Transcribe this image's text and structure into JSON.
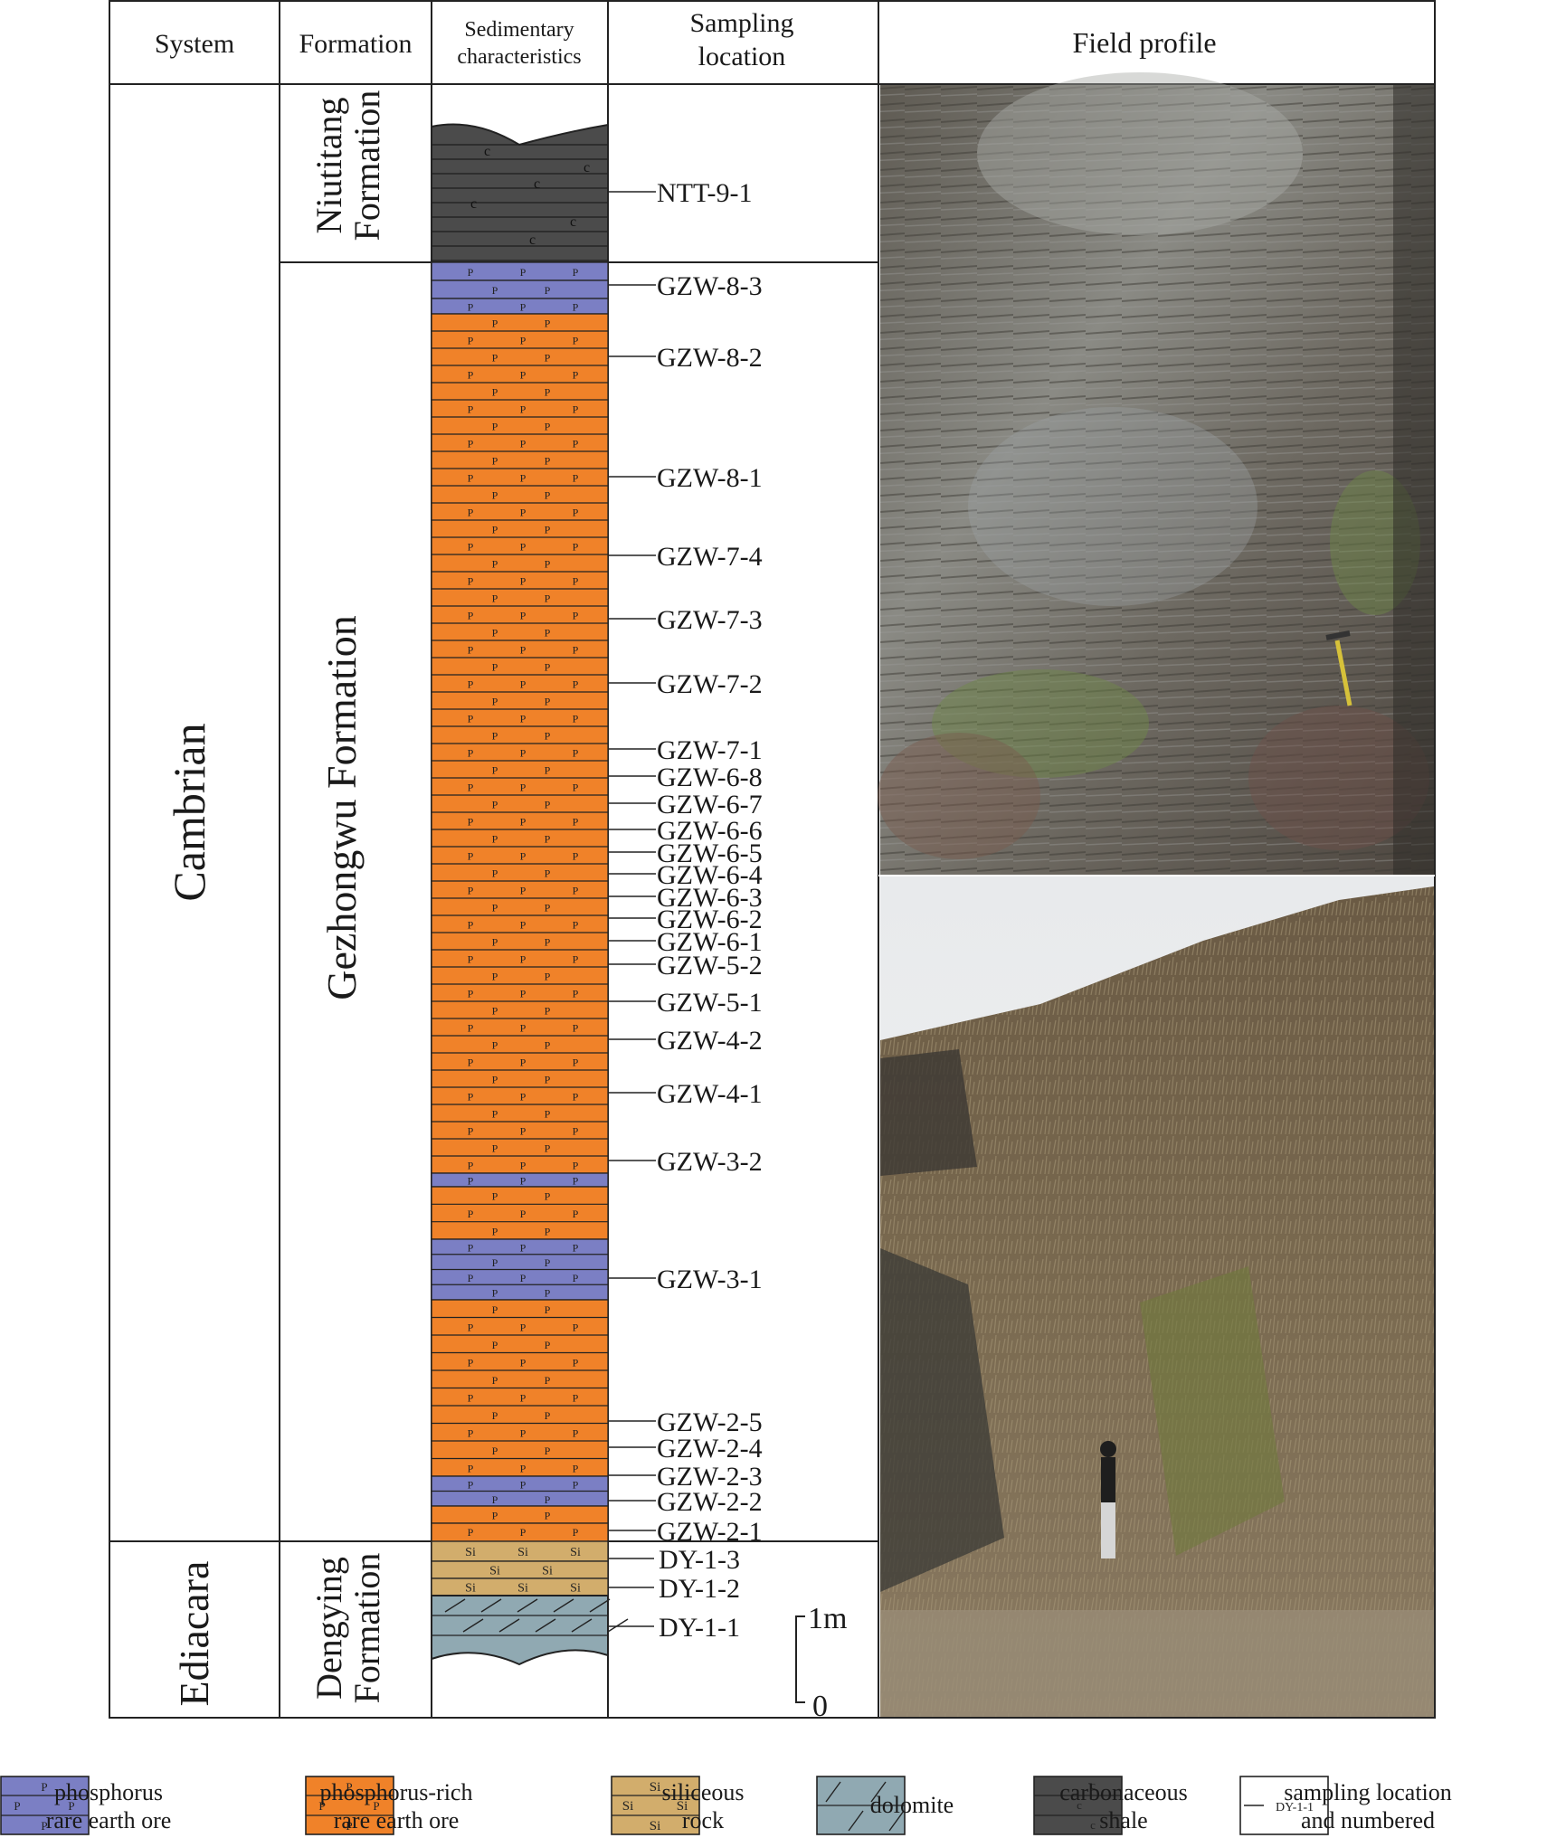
{
  "headers": {
    "system": "System",
    "formation": "Formation",
    "sedimentary": [
      "Sedimentary",
      "characteristics"
    ],
    "sampling": [
      "Sampling",
      "location"
    ],
    "field": "Field profile"
  },
  "systems": [
    {
      "label": "Cambrian"
    },
    {
      "label": "Ediacara"
    }
  ],
  "formations": [
    {
      "lines": [
        "Niutitang",
        "Formation"
      ]
    },
    {
      "label": "Gezhongwu Formation"
    },
    {
      "lines": [
        "Dengying",
        "Formation"
      ]
    }
  ],
  "lithology_symbols": {
    "phosphorus": "P",
    "siliceous": "Si",
    "carbonaceous": "c"
  },
  "colors": {
    "phosphorus_rare_earth_ore": "#7b7fc4",
    "phosphorus_rich_rare_earth_ore": "#f08229",
    "siliceous_rock": "#d2ad6c",
    "dolomite": "#90a9b2",
    "carbonaceous_shale": "#4b4b4b"
  },
  "samples": [
    "NTT-9-1",
    "GZW-8-3",
    "GZW-8-2",
    "GZW-8-1",
    "GZW-7-4",
    "GZW-7-3",
    "GZW-7-2",
    "GZW-7-1",
    "GZW-6-8",
    "GZW-6-7",
    "GZW-6-6",
    "GZW-6-5",
    "GZW-6-4",
    "GZW-6-3",
    "GZW-6-2",
    "GZW-6-1",
    "GZW-5-2",
    "GZW-5-1",
    "GZW-4-2",
    "GZW-4-1",
    "GZW-3-2",
    "GZW-3-1",
    "GZW-2-5",
    "GZW-2-4",
    "GZW-2-3",
    "GZW-2-2",
    "GZW-2-1",
    "DY-1-3",
    "DY-1-2",
    "DY-1-1"
  ],
  "scale": {
    "top": "1m",
    "bottom": "0"
  },
  "legend": [
    {
      "lines": [
        "phosphorus",
        "rare earth ore"
      ]
    },
    {
      "lines": [
        "phosphorus-rich",
        "rare earth ore"
      ]
    },
    {
      "lines": [
        "siliceous",
        "rock"
      ]
    },
    {
      "lines": [
        "dolomite"
      ]
    },
    {
      "lines": [
        "carbonaceous",
        "shale"
      ]
    },
    {
      "lines": [
        "sampling location",
        "and numbered"
      ],
      "sample_box": "DY-1-1"
    }
  ]
}
